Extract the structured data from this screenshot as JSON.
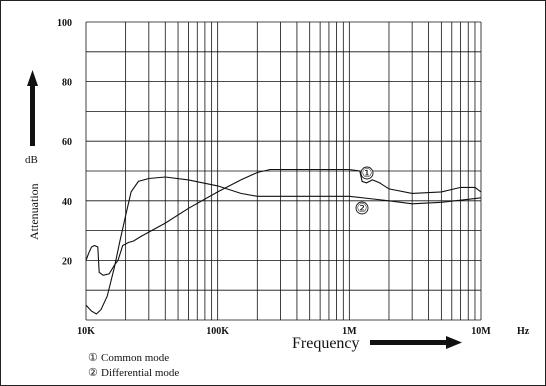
{
  "chart_data": {
    "type": "line",
    "xscale": "log",
    "x_ticks": [
      "10K",
      "100K",
      "1M",
      "10M"
    ],
    "x_unit": "Hz",
    "y_ticks": [
      "20",
      "40",
      "60",
      "80",
      "100"
    ],
    "ylim": [
      0,
      100
    ],
    "xlim": [
      10000,
      10000000
    ],
    "xlabel": "Frequency",
    "ylabel": "Attenuation",
    "yunit": "dB",
    "grid": true,
    "series": [
      {
        "name": "Common mode",
        "marker": "①",
        "legend_label": "Common mode",
        "points": [
          [
            10000,
            20
          ],
          [
            10500,
            22.5
          ],
          [
            11000,
            24.5
          ],
          [
            11600,
            25
          ],
          [
            12300,
            24.5
          ],
          [
            12600,
            16
          ],
          [
            13500,
            15
          ],
          [
            15000,
            15.5
          ],
          [
            16500,
            18.5
          ],
          [
            17500,
            20
          ],
          [
            19000,
            25
          ],
          [
            21000,
            26
          ],
          [
            23000,
            26.5
          ],
          [
            26000,
            28
          ],
          [
            30000,
            29.5
          ],
          [
            40000,
            32.5
          ],
          [
            60000,
            37.5
          ],
          [
            100000,
            43
          ],
          [
            150000,
            47
          ],
          [
            200000,
            49.5
          ],
          [
            250000,
            50.5
          ],
          [
            400000,
            50.5
          ],
          [
            1000000,
            50.5
          ],
          [
            1200000,
            50
          ],
          [
            1250000,
            46.5
          ],
          [
            1350000,
            46
          ],
          [
            1500000,
            47
          ],
          [
            1700000,
            46
          ],
          [
            2000000,
            44
          ],
          [
            3000000,
            42.5
          ],
          [
            5000000,
            43
          ],
          [
            7000000,
            44.5
          ],
          [
            9000000,
            44.5
          ],
          [
            10000000,
            43
          ]
        ]
      },
      {
        "name": "Differential mode",
        "marker": "②",
        "legend_label": "Differential mode",
        "points": [
          [
            10000,
            5
          ],
          [
            11000,
            3
          ],
          [
            12000,
            2
          ],
          [
            13000,
            3.5
          ],
          [
            14500,
            8
          ],
          [
            16500,
            18
          ],
          [
            18000,
            26
          ],
          [
            20000,
            35
          ],
          [
            22000,
            43
          ],
          [
            25000,
            46.5
          ],
          [
            30000,
            47.5
          ],
          [
            40000,
            48
          ],
          [
            60000,
            47
          ],
          [
            100000,
            45
          ],
          [
            150000,
            42.5
          ],
          [
            200000,
            41.5
          ],
          [
            400000,
            41.5
          ],
          [
            1000000,
            41.5
          ],
          [
            2000000,
            40
          ],
          [
            3000000,
            39
          ],
          [
            5000000,
            39.5
          ],
          [
            8000000,
            40.5
          ],
          [
            10000000,
            41
          ]
        ]
      }
    ]
  }
}
